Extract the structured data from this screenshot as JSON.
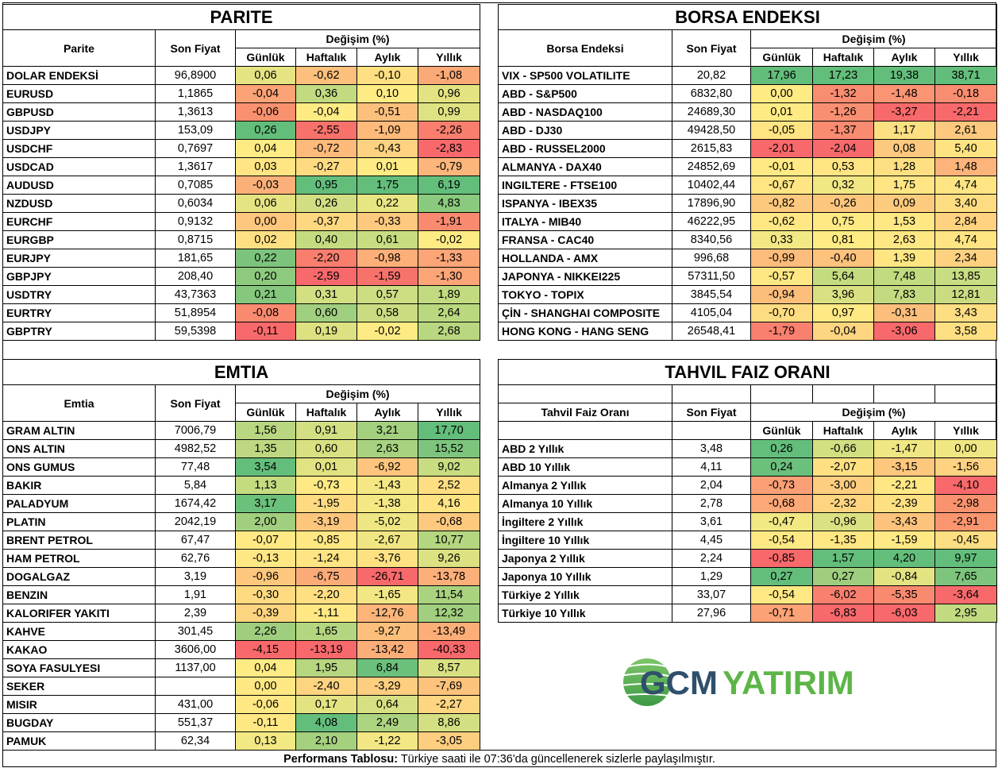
{
  "parite": {
    "title": "PARITE",
    "col_name": "Parite",
    "col_price": "Son Fiyat",
    "col_change": "Değişim (%)",
    "periods": [
      "Günlük",
      "Haftalık",
      "Aylık",
      "Yıllık"
    ],
    "rows": [
      {
        "name": "DOLAR ENDEKSİ",
        "price": "96,8900",
        "vals": [
          "0,06",
          "-0,62",
          "-0,10",
          "-1,08"
        ],
        "colors": [
          "#E6E383",
          "#FDC07C",
          "#FEE082",
          "#FBA977"
        ]
      },
      {
        "name": "EURUSD",
        "price": "1,1865",
        "vals": [
          "-0,04",
          "0,36",
          "0,10",
          "0,96"
        ],
        "colors": [
          "#FBA276",
          "#C2DA80",
          "#FFEB84",
          "#E3E382"
        ]
      },
      {
        "name": "GBPUSD",
        "price": "1,3613",
        "vals": [
          "-0,06",
          "-0,04",
          "-0,51",
          "0,99"
        ],
        "colors": [
          "#F9916F",
          "#FFEB84",
          "#FDC07C",
          "#DFE282"
        ]
      },
      {
        "name": "USDJPY",
        "price": "153,09",
        "vals": [
          "0,26",
          "-2,55",
          "-1,09",
          "-2,26"
        ],
        "colors": [
          "#63BE7B",
          "#F8726C",
          "#FDBA7B",
          "#F97E6E"
        ]
      },
      {
        "name": "USDCHF",
        "price": "0,7697",
        "vals": [
          "0,04",
          "-0,72",
          "-0,43",
          "-2,83"
        ],
        "colors": [
          "#FFEB84",
          "#FDBA7B",
          "#FED280",
          "#F8696B"
        ]
      },
      {
        "name": "USDCAD",
        "price": "1,3617",
        "vals": [
          "0,03",
          "-0,27",
          "0,01",
          "-0,79"
        ],
        "colors": [
          "#FFE583",
          "#FEDB81",
          "#FFEB84",
          "#FCB57A"
        ]
      },
      {
        "name": "AUDUSD",
        "price": "0,7085",
        "vals": [
          "-0,03",
          "0,95",
          "1,75",
          "6,19"
        ],
        "colors": [
          "#FBB079",
          "#63BE7B",
          "#63BE7B",
          "#63BE7B"
        ]
      },
      {
        "name": "NZDUSD",
        "price": "0,6034",
        "vals": [
          "0,06",
          "0,26",
          "0,22",
          "4,83"
        ],
        "colors": [
          "#E6E383",
          "#D1DE82",
          "#E8E583",
          "#8ACA7E"
        ]
      },
      {
        "name": "EURCHF",
        "price": "0,9132",
        "vals": [
          "0,00",
          "-0,37",
          "-0,33",
          "-1,91"
        ],
        "colors": [
          "#FDC77D",
          "#FED781",
          "#FDC97E",
          "#F98A70"
        ]
      },
      {
        "name": "EURGBP",
        "price": "0,8715",
        "vals": [
          "0,02",
          "0,40",
          "0,61",
          "-0,02"
        ],
        "colors": [
          "#FEE082",
          "#C5DB80",
          "#C8DC81",
          "#FFEB84"
        ]
      },
      {
        "name": "EURJPY",
        "price": "181,65",
        "vals": [
          "0,22",
          "-2,20",
          "-0,98",
          "-1,33"
        ],
        "colors": [
          "#7CC47C",
          "#F97E6E",
          "#FCAF78",
          "#FCA577"
        ]
      },
      {
        "name": "GBPJPY",
        "price": "208,40",
        "vals": [
          "0,20",
          "-2,59",
          "-1,59",
          "-1,30"
        ],
        "colors": [
          "#8ECA7E",
          "#F8696B",
          "#F8726C",
          "#FCA577"
        ]
      },
      {
        "name": "USDTRY",
        "price": "43,7363",
        "vals": [
          "0,21",
          "0,31",
          "0,57",
          "1,89"
        ],
        "colors": [
          "#84C77D",
          "#D4DF82",
          "#CDDD81",
          "#C2DA80"
        ]
      },
      {
        "name": "EURTRY",
        "price": "51,8954",
        "vals": [
          "-0,08",
          "0,60",
          "0,58",
          "2,64"
        ],
        "colors": [
          "#F98A70",
          "#A0CF7F",
          "#C9DC81",
          "#BAD880"
        ]
      },
      {
        "name": "GBPTRY",
        "price": "59,5398",
        "vals": [
          "-0,11",
          "0,19",
          "-0,02",
          "2,68"
        ],
        "colors": [
          "#F8696B",
          "#DDE182",
          "#FFEB84",
          "#B9D780"
        ]
      }
    ]
  },
  "borsa": {
    "title": "BORSA ENDEKSI",
    "col_name": "Borsa Endeksi",
    "col_price": "Son Fiyat",
    "col_change": "Değişim (%)",
    "periods": [
      "Günlük",
      "Haftalık",
      "Aylık",
      "Yıllık"
    ],
    "rows": [
      {
        "name": "VIX  - SP500 VOLATILITE",
        "price": "20,82",
        "vals": [
          "17,96",
          "17,23",
          "19,38",
          "38,71"
        ],
        "colors": [
          "#63BE7B",
          "#63BE7B",
          "#63BE7B",
          "#63BE7B"
        ]
      },
      {
        "name": "ABD - S&P500",
        "price": "6832,80",
        "vals": [
          "0,00",
          "-1,32",
          "-1,48",
          "-0,18"
        ],
        "colors": [
          "#FFEB84",
          "#F98D71",
          "#FA9473",
          "#F98D71"
        ]
      },
      {
        "name": "ABD - NASDAQ100",
        "price": "24689,30",
        "vals": [
          "0,01",
          "-1,26",
          "-3,27",
          "-2,21"
        ],
        "colors": [
          "#FFEB84",
          "#F98F72",
          "#F8696B",
          "#F8696B"
        ]
      },
      {
        "name": "ABD - DJ30",
        "price": "49428,50",
        "vals": [
          "-0,05",
          "-1,37",
          "1,17",
          "2,61"
        ],
        "colors": [
          "#FFE483",
          "#F98B71",
          "#FEE082",
          "#FDC97E"
        ]
      },
      {
        "name": "ABD - RUSSEL2000",
        "price": "2615,83",
        "vals": [
          "-2,01",
          "-2,04",
          "0,08",
          "5,40"
        ],
        "colors": [
          "#F8696B",
          "#F8696B",
          "#FDC97E",
          "#FFE383"
        ]
      },
      {
        "name": "ALMANYA - DAX40",
        "price": "24852,69",
        "vals": [
          "-0,01",
          "0,53",
          "1,28",
          "1,48"
        ],
        "colors": [
          "#FFE984",
          "#FFE483",
          "#FEE082",
          "#FCB47A"
        ]
      },
      {
        "name": "INGILTERE - FTSE100",
        "price": "10402,44",
        "vals": [
          "-0,67",
          "0,32",
          "1,75",
          "4,74"
        ],
        "colors": [
          "#FFE583",
          "#F1E783",
          "#FFE583",
          "#FFE483"
        ]
      },
      {
        "name": "ISPANYA - IBEX35",
        "price": "17896,90",
        "vals": [
          "-0,82",
          "-0,26",
          "0,09",
          "3,40"
        ],
        "colors": [
          "#FDC97E",
          "#FDC67D",
          "#FDCB7E",
          "#FEDD82"
        ]
      },
      {
        "name": "ITALYA - MIB40",
        "price": "46222,95",
        "vals": [
          "-0,62",
          "0,75",
          "1,53",
          "2,84"
        ],
        "colors": [
          "#FFE784",
          "#FFE984",
          "#FFE784",
          "#FED280"
        ]
      },
      {
        "name": "FRANSA - CAC40",
        "price": "8340,56",
        "vals": [
          "0,33",
          "0,81",
          "2,63",
          "4,74"
        ],
        "colors": [
          "#F2E884",
          "#FFEB84",
          "#FFE784",
          "#FFE483"
        ]
      },
      {
        "name": "HOLLANDA - AMX",
        "price": "996,68",
        "vals": [
          "-0,99",
          "-0,40",
          "1,39",
          "2,34"
        ],
        "colors": [
          "#FCBC7B",
          "#FDC27C",
          "#FFE683",
          "#FED180"
        ]
      },
      {
        "name": "JAPONYA - NIKKEI225",
        "price": "57311,50",
        "vals": [
          "-0,57",
          "5,64",
          "7,48",
          "13,85"
        ],
        "colors": [
          "#FFE884",
          "#C5DB80",
          "#C2DA80",
          "#C8DC81"
        ]
      },
      {
        "name": "TOKYO - TOPIX",
        "price": "3845,54",
        "vals": [
          "-0,94",
          "3,96",
          "7,83",
          "12,81"
        ],
        "colors": [
          "#FCBE7B",
          "#D8E082",
          "#C4DA80",
          "#C9DC81"
        ]
      },
      {
        "name": "ÇİN - SHANGHAI COMPOSITE",
        "price": "4105,04",
        "vals": [
          "-0,70",
          "0,97",
          "-0,31",
          "3,43"
        ],
        "colors": [
          "#FEDD82",
          "#FFE984",
          "#FCBF7B",
          "#FEDE82"
        ]
      },
      {
        "name": "HONG KONG - HANG SENG",
        "price": "26548,41",
        "vals": [
          "-1,79",
          "-0,04",
          "-3,06",
          "3,58"
        ],
        "colors": [
          "#F9806F",
          "#FED580",
          "#F8696B",
          "#FEDF82"
        ]
      }
    ]
  },
  "emtia": {
    "title": "EMTIA",
    "col_name": "Emtia",
    "col_price": "Son Fiyat",
    "col_change": "Değişim (%)",
    "periods": [
      "Günlük",
      "Haftalık",
      "Aylık",
      "Yıllık"
    ],
    "rows": [
      {
        "name": "GRAM ALTIN",
        "price": "7006,79",
        "vals": [
          "1,56",
          "0,91",
          "3,21",
          "17,70"
        ],
        "colors": [
          "#B8D780",
          "#D3DF82",
          "#A3D07F",
          "#63BE7B"
        ]
      },
      {
        "name": "ONS ALTIN",
        "price": "4982,52",
        "vals": [
          "1,35",
          "0,60",
          "2,63",
          "15,52"
        ],
        "colors": [
          "#BDD880",
          "#D9E082",
          "#A8D27F",
          "#7DC57D"
        ]
      },
      {
        "name": "ONS GUMUS",
        "price": "77,48",
        "vals": [
          "3,54",
          "0,01",
          "-6,92",
          "9,02"
        ],
        "colors": [
          "#63BE7B",
          "#E1E282",
          "#FDC57D",
          "#C8DC81"
        ]
      },
      {
        "name": "BAKIR",
        "price": "5,84",
        "vals": [
          "1,13",
          "-0,73",
          "-1,43",
          "2,52"
        ],
        "colors": [
          "#C5DB80",
          "#FFE984",
          "#F5E884",
          "#FEDE82"
        ]
      },
      {
        "name": "PALADYUM",
        "price": "1674,42",
        "vals": [
          "3,17",
          "-1,95",
          "-1,38",
          "4,16"
        ],
        "colors": [
          "#6BC07C",
          "#FEDA81",
          "#F4E884",
          "#FFE383"
        ]
      },
      {
        "name": "PLATIN",
        "price": "2042,19",
        "vals": [
          "2,00",
          "-3,19",
          "-5,02",
          "-0,68"
        ],
        "colors": [
          "#A2CF7F",
          "#FDC67D",
          "#EDE683",
          "#FDC97E"
        ]
      },
      {
        "name": "BRENT PETROL",
        "price": "67,47",
        "vals": [
          "-0,07",
          "-0,85",
          "-2,67",
          "10,77"
        ],
        "colors": [
          "#FFE984",
          "#FFE784",
          "#EFE683",
          "#B4D680"
        ]
      },
      {
        "name": "HAM PETROL",
        "price": "62,76",
        "vals": [
          "-0,13",
          "-1,24",
          "-3,76",
          "9,26"
        ],
        "colors": [
          "#FFE784",
          "#FFE483",
          "#FEE282",
          "#DCE182"
        ]
      },
      {
        "name": "DOGALGAZ",
        "price": "3,19",
        "vals": [
          "-0,96",
          "-6,75",
          "-26,71",
          "-13,78"
        ],
        "colors": [
          "#FDC77D",
          "#FBAB77",
          "#F8696B",
          "#FCAF78"
        ]
      },
      {
        "name": "BENZIN",
        "price": "1,91",
        "vals": [
          "-0,30",
          "-2,20",
          "-1,65",
          "11,54"
        ],
        "colors": [
          "#FEDA81",
          "#FEDF82",
          "#F2E784",
          "#AAD27F"
        ]
      },
      {
        "name": "KALORIFER YAKITI",
        "price": "2,39",
        "vals": [
          "-0,39",
          "-1,11",
          "-12,76",
          "12,32"
        ],
        "colors": [
          "#FDD480",
          "#FFE884",
          "#FDB57A",
          "#A2CF7F"
        ]
      },
      {
        "name": "KAHVE",
        "price": "301,45",
        "vals": [
          "2,26",
          "1,65",
          "-9,27",
          "-13,49"
        ],
        "colors": [
          "#9FCE7F",
          "#B5D680",
          "#FDC07C",
          "#FCAE78"
        ]
      },
      {
        "name": "KAKAO",
        "price": "3606,00",
        "vals": [
          "-4,15",
          "-13,19",
          "-13,42",
          "-40,33"
        ],
        "colors": [
          "#F8696B",
          "#F8696B",
          "#FCAE78",
          "#F8696B"
        ]
      },
      {
        "name": "SOYA FASULYESI",
        "price": "1137,00",
        "vals": [
          "0,04",
          "1,95",
          "6,84",
          "8,57"
        ],
        "colors": [
          "#FFEB84",
          "#B6D680",
          "#6BC07C",
          "#D8E082"
        ]
      },
      {
        "name": "SEKER",
        "price": "",
        "vals": [
          "0,00",
          "-2,40",
          "-3,29",
          "-7,69"
        ],
        "colors": [
          "#FFE884",
          "#FDD480",
          "#FDCE7F",
          "#FDC27C"
        ]
      },
      {
        "name": "MISIR",
        "price": "431,00",
        "vals": [
          "-0,06",
          "0,17",
          "0,64",
          "-2,27"
        ],
        "colors": [
          "#FFE784",
          "#E3E382",
          "#D6E082",
          "#FED580"
        ]
      },
      {
        "name": "BUGDAY",
        "price": "551,37",
        "vals": [
          "-0,11",
          "4,08",
          "2,49",
          "8,86"
        ],
        "colors": [
          "#FFE884",
          "#63BE7B",
          "#ACD37F",
          "#D3DF82"
        ]
      },
      {
        "name": "PAMUK",
        "price": "62,34",
        "vals": [
          "0,13",
          "2,10",
          "-1,22",
          "-3,05"
        ],
        "colors": [
          "#F2E884",
          "#A5D17F",
          "#F2E784",
          "#FDCE7F"
        ]
      }
    ]
  },
  "tahvil": {
    "title": "TAHVIL FAIZ ORANI",
    "col_name": "Tahvil Faiz Oranı",
    "col_price": "Son Fiyat",
    "col_change": "Değişim (%)",
    "periods": [
      "Günlük",
      "Haftalık",
      "Aylık",
      "Yıllık"
    ],
    "rows": [
      {
        "name": "ABD 2 Yıllık",
        "price": "3,48",
        "vals": [
          "0,26",
          "-0,66",
          "-1,47",
          "0,00"
        ],
        "colors": [
          "#63BE7B",
          "#D4DF82",
          "#F0E683",
          "#F0E683"
        ]
      },
      {
        "name": "ABD 10 Yıllık",
        "price": "4,11",
        "vals": [
          "0,24",
          "-2,07",
          "-3,15",
          "-1,56"
        ],
        "colors": [
          "#6BC07C",
          "#FEE082",
          "#FDC77D",
          "#FDD280"
        ]
      },
      {
        "name": "Almanya 2 Yıllık",
        "price": "2,04",
        "vals": [
          "-0,73",
          "-3,00",
          "-2,21",
          "-4,10"
        ],
        "colors": [
          "#FBA076",
          "#FDCE7F",
          "#FFE784",
          "#F8696B"
        ]
      },
      {
        "name": "Almanya 10 Yıllık",
        "price": "2,78",
        "vals": [
          "-0,68",
          "-2,32",
          "-2,39",
          "-2,98"
        ],
        "colors": [
          "#FCA877",
          "#FED480",
          "#FEE082",
          "#F9926F"
        ]
      },
      {
        "name": "İngiltere 2 Yıllık",
        "price": "3,61",
        "vals": [
          "-0,47",
          "-0,96",
          "-3,43",
          "-2,91"
        ],
        "colors": [
          "#F2E884",
          "#DAE182",
          "#FDC37C",
          "#F9956F"
        ]
      },
      {
        "name": "İngiltere 10 Yıllık",
        "price": "4,45",
        "vals": [
          "-0,54",
          "-1,35",
          "-1,59",
          "-0,45"
        ],
        "colors": [
          "#FFE984",
          "#FFE784",
          "#FFE984",
          "#FEDE82"
        ]
      },
      {
        "name": "Japonya 2 Yıllık",
        "price": "2,24",
        "vals": [
          "-0,85",
          "1,57",
          "4,20",
          "9,97"
        ],
        "colors": [
          "#F8696B",
          "#63BE7B",
          "#63BE7B",
          "#63BE7B"
        ]
      },
      {
        "name": "Japonya 10 Yıllık",
        "price": "1,29",
        "vals": [
          "0,27",
          "0,27",
          "-0,84",
          "7,65"
        ],
        "colors": [
          "#63BE7B",
          "#9FCE7F",
          "#E3E382",
          "#7DC57D"
        ]
      },
      {
        "name": "Türkiye 2 Yıllık",
        "price": "33,07",
        "vals": [
          "-0,54",
          "-6,02",
          "-5,35",
          "-3,64"
        ],
        "colors": [
          "#FFE984",
          "#F9806F",
          "#F98A70",
          "#F8696B"
        ]
      },
      {
        "name": "Türkiye 10 Yıllık",
        "price": "27,96",
        "vals": [
          "-0,71",
          "-6,83",
          "-6,03",
          "2,95"
        ],
        "colors": [
          "#FBA376",
          "#F8696B",
          "#F8696B",
          "#C2DA80"
        ]
      }
    ]
  },
  "logo": {
    "text_dark": "GCM",
    "text_green": "YATIRIM",
    "color_dark": "#2F4F6B",
    "color_green": "#5DB548"
  },
  "footer": {
    "bold": "Performans Tablosu:",
    "text": " Türkiye saati ile 07:36'da güncellenerek sizlerle paylaşılmıştır."
  }
}
